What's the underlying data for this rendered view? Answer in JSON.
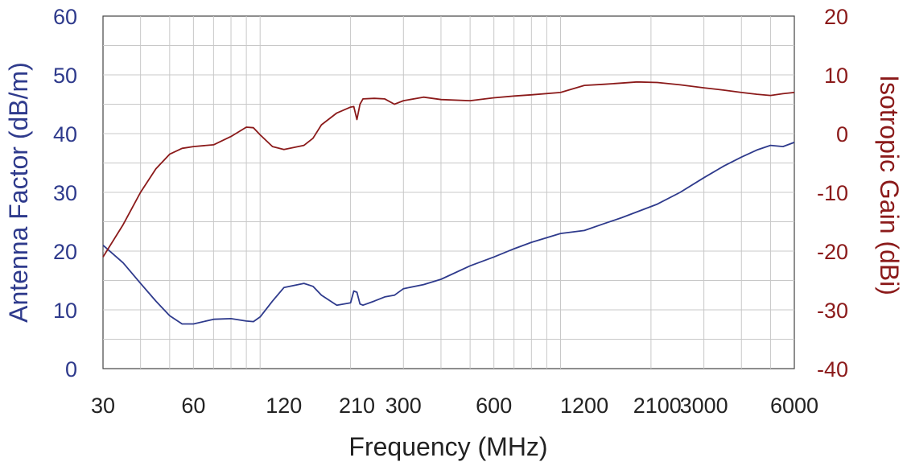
{
  "chart_data": {
    "type": "line",
    "xscale": "log",
    "grid": true,
    "xlabel": "Frequency (MHz)",
    "ylabel": "Antenna Factor (dB/m)",
    "ylabel_right": "Isotropic Gain (dBi)",
    "xlim": [
      30,
      6000
    ],
    "ylim": [
      0,
      60
    ],
    "ylim_right": [
      -40,
      20
    ],
    "x_ticks": [
      30,
      60,
      120,
      210,
      300,
      600,
      1200,
      2100,
      3000,
      6000
    ],
    "y_ticks": [
      0,
      10,
      20,
      30,
      40,
      50,
      60
    ],
    "y_ticks_right": [
      -40,
      -30,
      -20,
      -10,
      0,
      10,
      20
    ],
    "colors": {
      "antenna_factor": "#2e3a8c",
      "isotropic_gain": "#8b1a1a"
    },
    "series": [
      {
        "axis": "left",
        "x": [
          30,
          35,
          40,
          45,
          50,
          55,
          60,
          70,
          80,
          90,
          95,
          100,
          110,
          120,
          140,
          150,
          160,
          180,
          200,
          205,
          210,
          215,
          220,
          240,
          260,
          280,
          300,
          350,
          400,
          500,
          600,
          700,
          800,
          1000,
          1200,
          1400,
          1600,
          1800,
          2100,
          2500,
          3000,
          3500,
          4000,
          4500,
          5000,
          5500,
          6000
        ],
        "y": [
          21,
          18,
          14.5,
          11.5,
          9,
          7.6,
          7.6,
          8.4,
          8.5,
          8.1,
          8.0,
          8.8,
          11.5,
          13.8,
          14.5,
          14.0,
          12.5,
          10.8,
          11.2,
          13.2,
          13.0,
          11.0,
          10.8,
          11.5,
          12.2,
          12.5,
          13.6,
          14.3,
          15.2,
          17.5,
          19.0,
          20.4,
          21.5,
          23.0,
          23.5,
          24.7,
          25.7,
          26.7,
          28.0,
          30.0,
          32.5,
          34.5,
          36.0,
          37.2,
          38.0,
          37.8,
          38.5
        ]
      },
      {
        "axis": "right",
        "x": [
          30,
          35,
          40,
          45,
          50,
          55,
          60,
          70,
          80,
          90,
          95,
          100,
          110,
          120,
          140,
          150,
          160,
          180,
          200,
          205,
          210,
          215,
          220,
          240,
          260,
          280,
          300,
          350,
          400,
          500,
          600,
          700,
          800,
          1000,
          1200,
          1400,
          1600,
          1800,
          2100,
          2500,
          3000,
          3500,
          4000,
          4500,
          5000,
          5500,
          6000
        ],
        "y": [
          -21,
          -15.5,
          -10,
          -6,
          -3.5,
          -2.5,
          -2.2,
          -1.9,
          -0.5,
          1.1,
          1.0,
          -0.2,
          -2.2,
          -2.7,
          -2.0,
          -0.8,
          1.5,
          3.5,
          4.5,
          4.6,
          2.4,
          5.0,
          5.9,
          6.0,
          5.9,
          5.0,
          5.6,
          6.2,
          5.8,
          5.6,
          6.1,
          6.4,
          6.6,
          7.0,
          8.2,
          8.4,
          8.6,
          8.8,
          8.7,
          8.3,
          7.8,
          7.4,
          7.0,
          6.7,
          6.5,
          6.8,
          7.0
        ]
      }
    ]
  }
}
